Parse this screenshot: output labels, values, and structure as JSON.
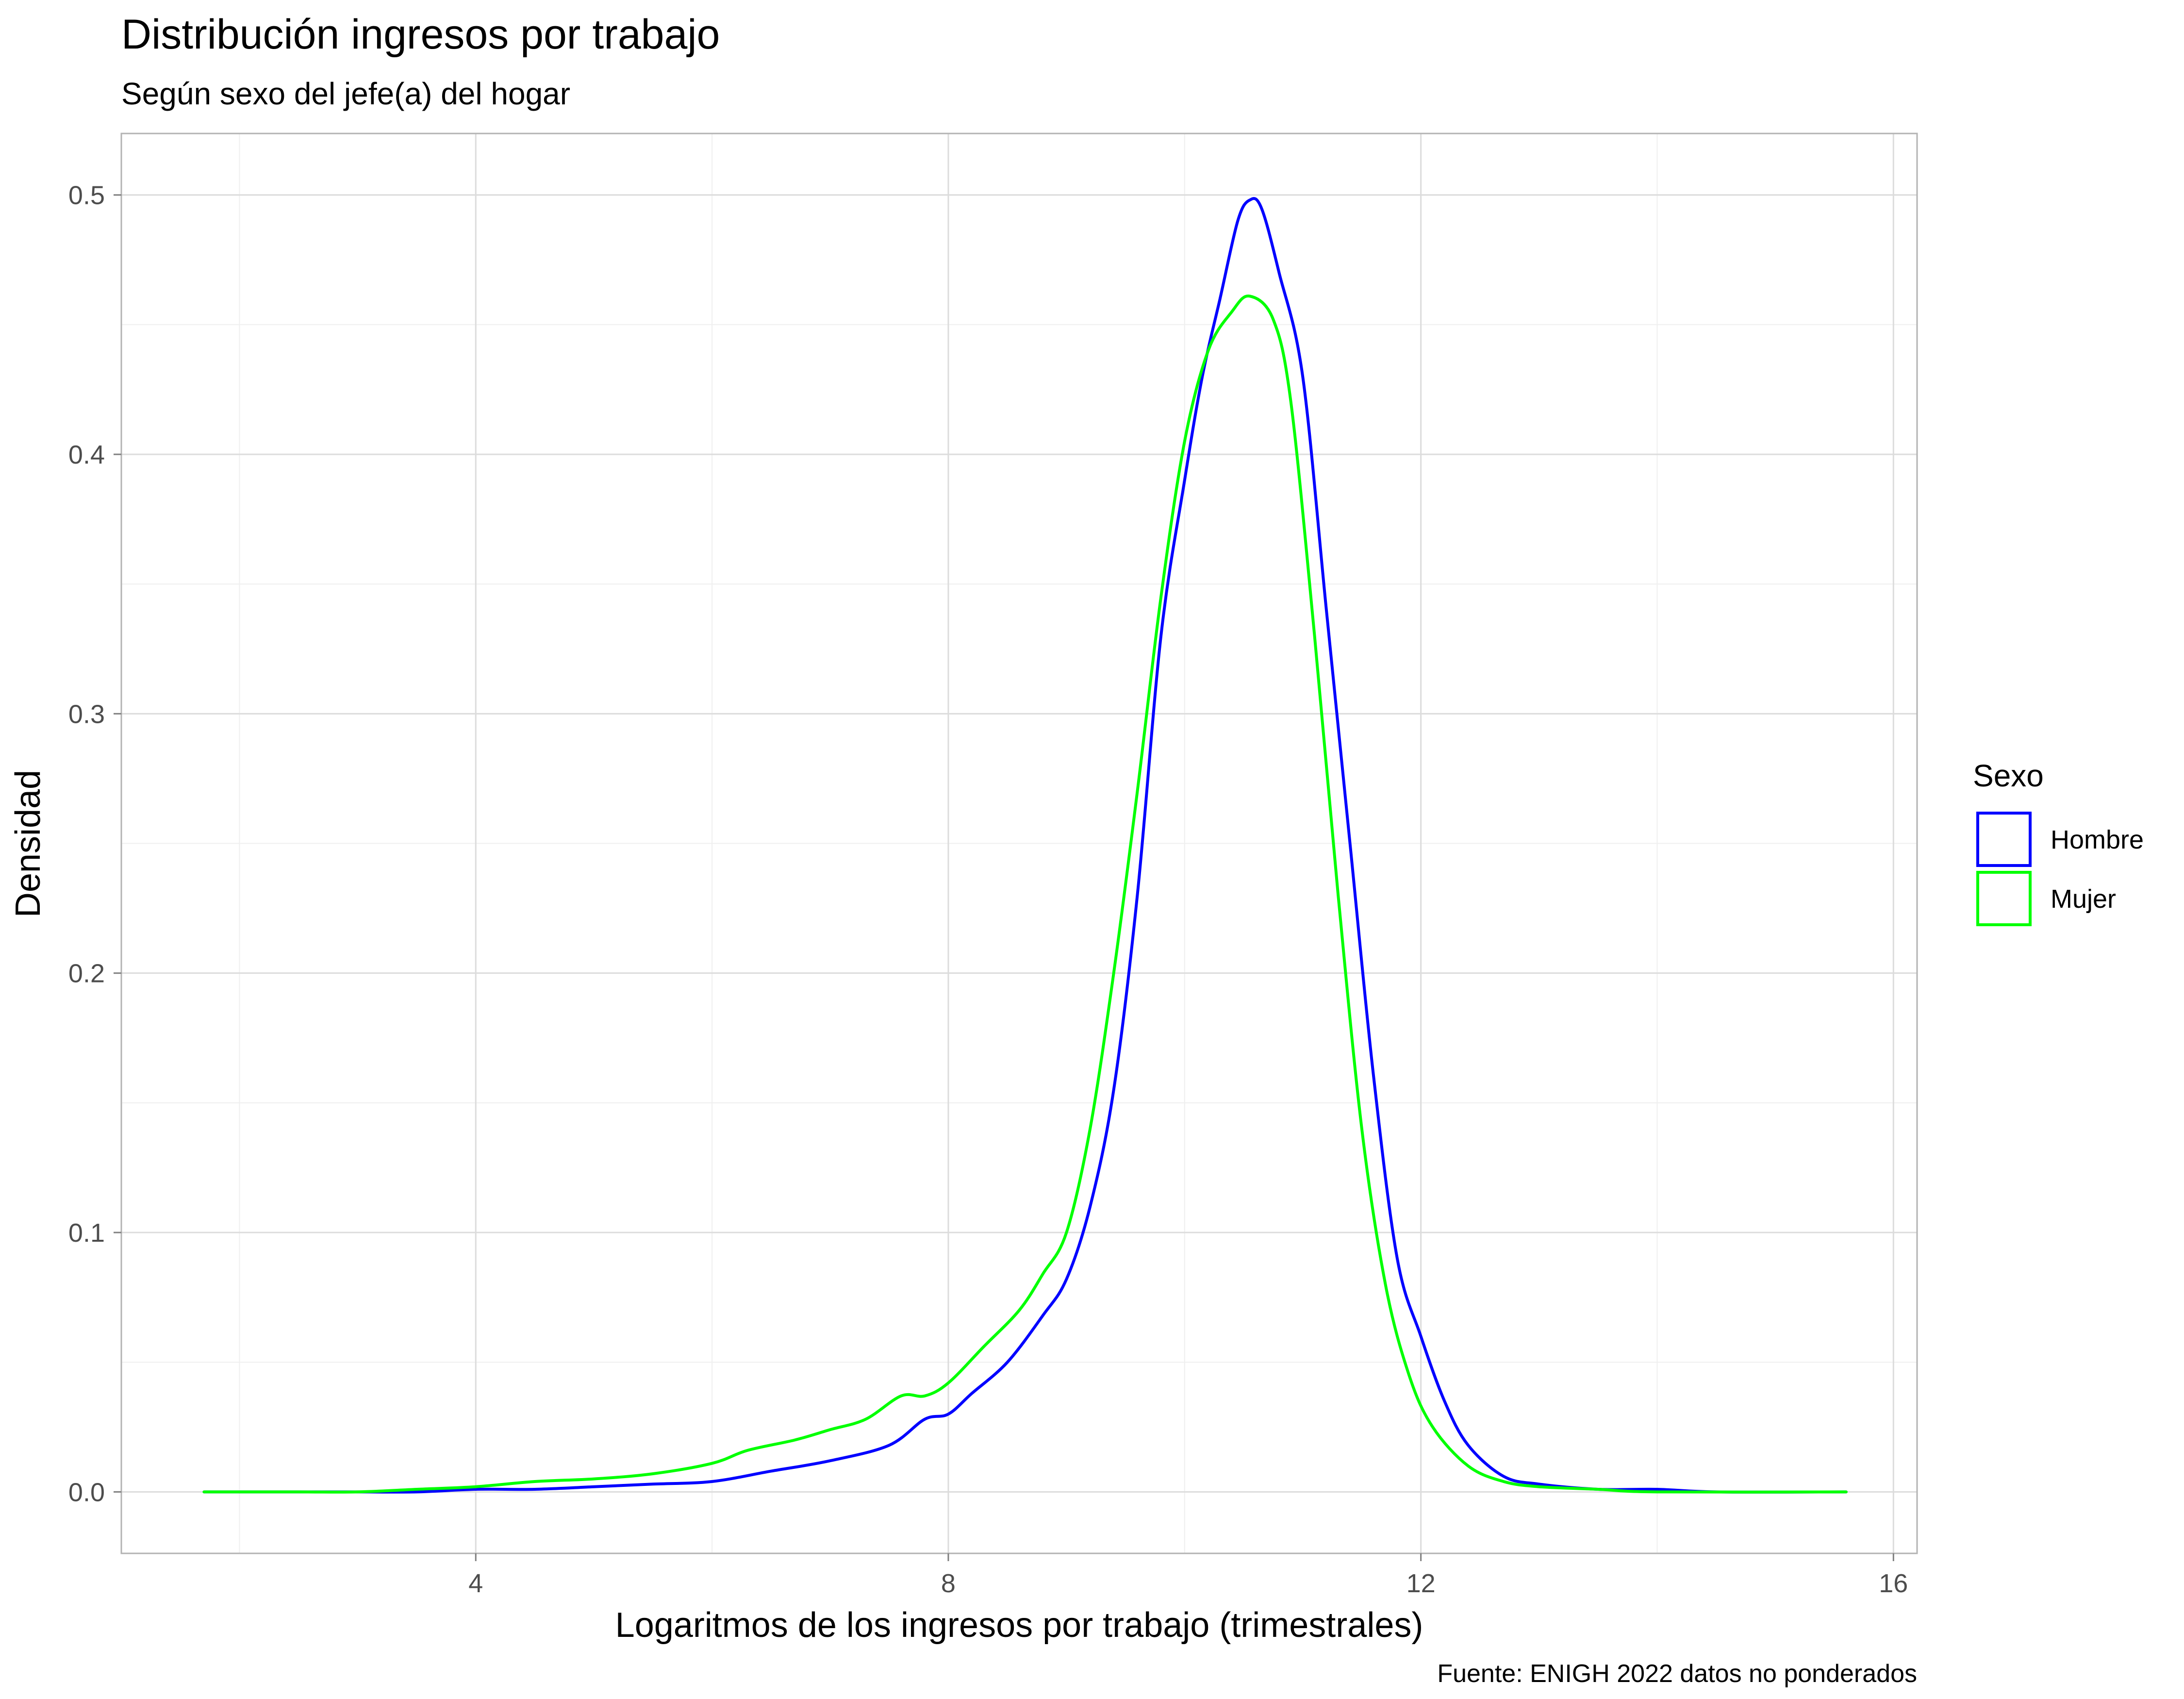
{
  "chart_data": {
    "type": "line",
    "title": "Distribución ingresos por trabajo",
    "subtitle": "Según sexo del jefe(a) del hogar",
    "xlabel": "Logaritmos de los ingresos por trabajo (trimestrales)",
    "ylabel": "Densidad",
    "caption": "Fuente: ENIGH 2022 datos no ponderados",
    "xlim": [
      1.0,
      16.2
    ],
    "ylim": [
      -0.0237,
      0.5237
    ],
    "x_ticks": [
      4,
      8,
      12,
      16
    ],
    "x_tick_labels": [
      "4",
      "8",
      "12",
      "16"
    ],
    "y_ticks": [
      0.0,
      0.1,
      0.2,
      0.3,
      0.4,
      0.5
    ],
    "y_tick_labels": [
      "0.0",
      "0.1",
      "0.2",
      "0.3",
      "0.4",
      "0.5"
    ],
    "grid": true,
    "legend": {
      "title": "Sexo",
      "position": "right"
    },
    "series": [
      {
        "name": "Hombre",
        "color": "#0000ff",
        "points": [
          [
            1.7,
            0.0
          ],
          [
            2.5,
            0.0
          ],
          [
            3.0,
            0.0
          ],
          [
            3.5,
            0.0
          ],
          [
            4.0,
            0.001
          ],
          [
            4.5,
            0.001
          ],
          [
            5.0,
            0.002
          ],
          [
            5.5,
            0.003
          ],
          [
            6.0,
            0.004
          ],
          [
            6.5,
            0.008
          ],
          [
            7.0,
            0.012
          ],
          [
            7.5,
            0.018
          ],
          [
            7.8,
            0.028
          ],
          [
            8.0,
            0.03
          ],
          [
            8.2,
            0.038
          ],
          [
            8.5,
            0.05
          ],
          [
            8.8,
            0.068
          ],
          [
            9.0,
            0.082
          ],
          [
            9.2,
            0.11
          ],
          [
            9.4,
            0.155
          ],
          [
            9.6,
            0.23
          ],
          [
            9.8,
            0.33
          ],
          [
            10.0,
            0.39
          ],
          [
            10.15,
            0.43
          ],
          [
            10.3,
            0.46
          ],
          [
            10.45,
            0.49
          ],
          [
            10.55,
            0.498
          ],
          [
            10.65,
            0.495
          ],
          [
            10.8,
            0.47
          ],
          [
            11.0,
            0.43
          ],
          [
            11.2,
            0.34
          ],
          [
            11.4,
            0.25
          ],
          [
            11.6,
            0.16
          ],
          [
            11.8,
            0.09
          ],
          [
            12.0,
            0.06
          ],
          [
            12.2,
            0.035
          ],
          [
            12.4,
            0.018
          ],
          [
            12.7,
            0.006
          ],
          [
            13.0,
            0.003
          ],
          [
            13.5,
            0.001
          ],
          [
            14.0,
            0.001
          ],
          [
            14.5,
            0.0
          ],
          [
            15.6,
            0.0
          ]
        ]
      },
      {
        "name": "Mujer",
        "color": "#00ff00",
        "points": [
          [
            1.7,
            0.0
          ],
          [
            2.5,
            0.0
          ],
          [
            3.0,
            0.0
          ],
          [
            3.5,
            0.001
          ],
          [
            4.0,
            0.002
          ],
          [
            4.5,
            0.004
          ],
          [
            5.0,
            0.005
          ],
          [
            5.5,
            0.007
          ],
          [
            6.0,
            0.011
          ],
          [
            6.3,
            0.016
          ],
          [
            6.7,
            0.02
          ],
          [
            7.0,
            0.024
          ],
          [
            7.3,
            0.028
          ],
          [
            7.6,
            0.037
          ],
          [
            7.8,
            0.037
          ],
          [
            8.0,
            0.042
          ],
          [
            8.3,
            0.056
          ],
          [
            8.6,
            0.07
          ],
          [
            8.8,
            0.084
          ],
          [
            9.0,
            0.1
          ],
          [
            9.2,
            0.14
          ],
          [
            9.4,
            0.2
          ],
          [
            9.6,
            0.27
          ],
          [
            9.8,
            0.345
          ],
          [
            10.0,
            0.405
          ],
          [
            10.2,
            0.44
          ],
          [
            10.4,
            0.455
          ],
          [
            10.55,
            0.461
          ],
          [
            10.75,
            0.452
          ],
          [
            10.9,
            0.42
          ],
          [
            11.1,
            0.33
          ],
          [
            11.3,
            0.23
          ],
          [
            11.5,
            0.14
          ],
          [
            11.7,
            0.08
          ],
          [
            11.9,
            0.045
          ],
          [
            12.1,
            0.025
          ],
          [
            12.4,
            0.01
          ],
          [
            12.7,
            0.004
          ],
          [
            13.0,
            0.002
          ],
          [
            13.5,
            0.001
          ],
          [
            14.0,
            0.0
          ],
          [
            15.6,
            0.0
          ]
        ]
      }
    ]
  }
}
